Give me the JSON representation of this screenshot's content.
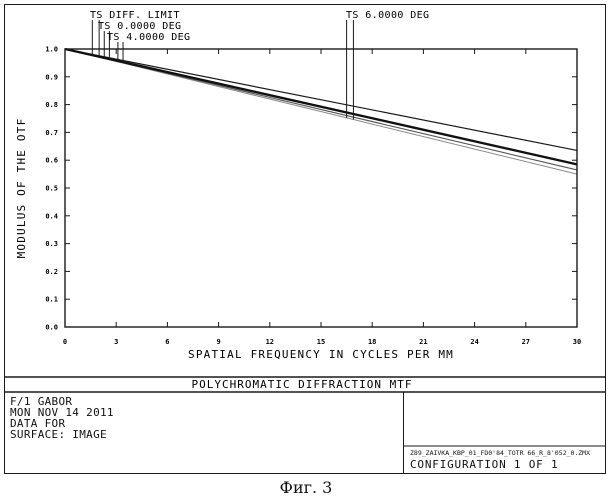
{
  "chart_data": {
    "type": "line",
    "title": "POLYCHROMATIC DIFFRACTION MTF",
    "xlabel": "SPATIAL FREQUENCY IN CYCLES PER MM",
    "ylabel": "MODULUS OF THE OTF",
    "xlim": [
      0,
      30
    ],
    "ylim": [
      0,
      1.0
    ],
    "xticks": [
      0,
      3,
      6,
      9,
      12,
      15,
      18,
      21,
      24,
      27,
      30
    ],
    "yticks": [
      0.0,
      0.1,
      0.2,
      0.3,
      0.4,
      0.5,
      0.6,
      0.7,
      0.8,
      0.9,
      1.0
    ],
    "xtick_labels": [
      "0",
      "3",
      "6",
      "9",
      "12",
      "15",
      "18",
      "21",
      "24",
      "27",
      "30"
    ],
    "ytick_labels": [
      "0.0",
      "0.1",
      "0.2",
      "0.3",
      "0.4",
      "0.5",
      "0.6",
      "0.7",
      "0.8",
      "0.9",
      "1.0"
    ],
    "grid": false,
    "series": [
      {
        "name": "TS DIFF. LIMIT",
        "x": [
          0,
          30
        ],
        "y": [
          1.0,
          0.635
        ],
        "color": "#1a1a1a",
        "width": 1.2
      },
      {
        "name": "TS 0.0000 DEG",
        "x": [
          0,
          30
        ],
        "y": [
          1.0,
          0.585
        ],
        "color": "#111111",
        "width": 2.4
      },
      {
        "name": "TS 4.0000 DEG",
        "x": [
          0,
          30
        ],
        "y": [
          1.0,
          0.565
        ],
        "color": "#555555",
        "width": 1.1
      },
      {
        "name": "TS 6.0000 DEG",
        "x": [
          0,
          30
        ],
        "y": [
          1.0,
          0.55
        ],
        "color": "#8a8a8a",
        "width": 1.0
      }
    ]
  },
  "info": {
    "lines": [
      "F/1 GABOR",
      "MON NOV 14 2011",
      "DATA FOR",
      "SURFACE: IMAGE"
    ],
    "file": "Z89_ZAIVKA_KBP_01_FD0'84_TOTR 66_R_8'052_0.ZMX",
    "configuration": "CONFIGURATION  1 OF  1"
  },
  "caption": "Фиг. 3"
}
